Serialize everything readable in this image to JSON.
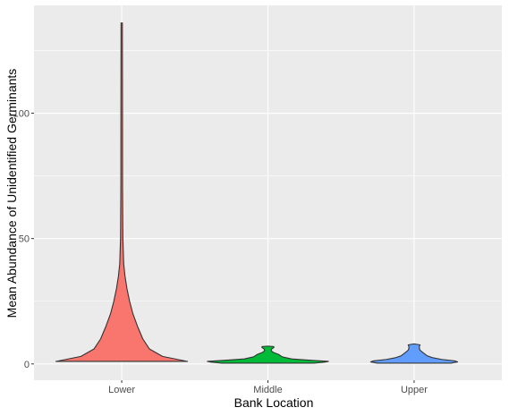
{
  "chart_data": {
    "type": "violin",
    "xlabel": "Bank Location",
    "ylabel": "Mean Abundance of Unidentified Germinants",
    "categories": [
      "Lower",
      "Middle",
      "Upper"
    ],
    "yticks": [
      0,
      50,
      100
    ],
    "ylim": [
      -6.5,
      143
    ],
    "grid": true,
    "legend": "none",
    "colors": {
      "panel": "#EBEBEB",
      "grid": "#FFFFFF",
      "outline": "#333333",
      "tick_text": "#4D4D4D"
    },
    "series": [
      {
        "category": "Lower",
        "fill": "#F8766D",
        "profile": [
          [
            1,
            1.0
          ],
          [
            3,
            0.62
          ],
          [
            6,
            0.42
          ],
          [
            10,
            0.32
          ],
          [
            15,
            0.24
          ],
          [
            20,
            0.17
          ],
          [
            25,
            0.12
          ],
          [
            30,
            0.08
          ],
          [
            35,
            0.05
          ],
          [
            40,
            0.03
          ],
          [
            50,
            0.018
          ],
          [
            70,
            0.013
          ],
          [
            100,
            0.012
          ],
          [
            136,
            0.01
          ]
        ]
      },
      {
        "category": "Middle",
        "fill": "#00BA38",
        "profile": [
          [
            0.3,
            0.7
          ],
          [
            0.7,
            0.86
          ],
          [
            1.0,
            0.92
          ],
          [
            1.5,
            0.62
          ],
          [
            2.0,
            0.36
          ],
          [
            2.8,
            0.22
          ],
          [
            3.8,
            0.16
          ],
          [
            4.5,
            0.09
          ],
          [
            5.0,
            0.06
          ],
          [
            5.5,
            0.05
          ],
          [
            6.0,
            0.06
          ],
          [
            6.5,
            0.09
          ],
          [
            6.9,
            0.09
          ],
          [
            7.1,
            0.0
          ]
        ]
      },
      {
        "category": "Upper",
        "fill": "#619CFF",
        "profile": [
          [
            0.3,
            0.56
          ],
          [
            0.8,
            0.66
          ],
          [
            1.2,
            0.62
          ],
          [
            1.8,
            0.42
          ],
          [
            2.5,
            0.28
          ],
          [
            3.2,
            0.2
          ],
          [
            4.0,
            0.16
          ],
          [
            4.8,
            0.12
          ],
          [
            5.5,
            0.09
          ],
          [
            6.2,
            0.08
          ],
          [
            7.0,
            0.08
          ],
          [
            7.6,
            0.09
          ],
          [
            8.0,
            0.0
          ]
        ]
      }
    ]
  }
}
